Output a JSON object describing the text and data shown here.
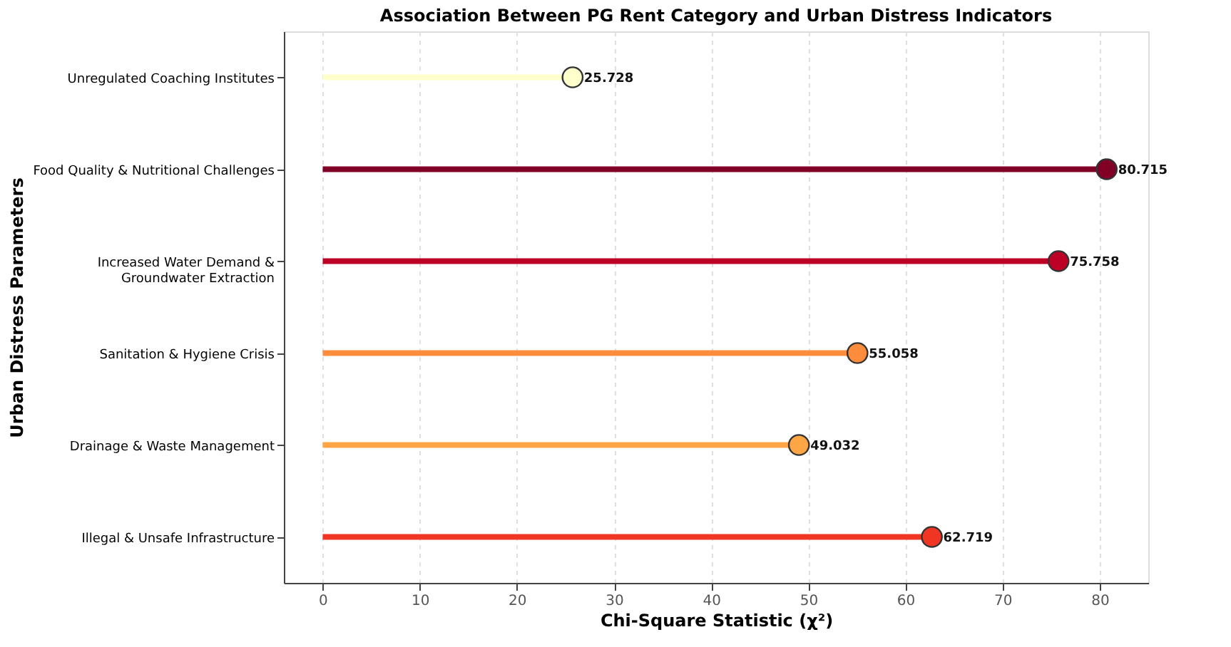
{
  "chart_data": {
    "type": "lollipop",
    "orientation": "horizontal",
    "title": "Association Between PG Rent Category and Urban Distress Indicators",
    "xlabel": "Chi-Square Statistic (χ²)",
    "ylabel": "Urban Distress Parameters",
    "categories": [
      "Unregulated Coaching Institutes",
      "Food Quality & Nutritional Challenges",
      "Increased Water Demand &\nGroundwater Extraction",
      "Sanitation & Hygiene Crisis",
      "Drainage & Waste Management",
      "Illegal & Unsafe Infrastructure"
    ],
    "values": [
      25.728,
      80.715,
      75.758,
      55.058,
      49.032,
      62.719
    ],
    "colors": [
      "#ffffcc",
      "#800026",
      "#bd0026",
      "#fd8d3c",
      "#fea546",
      "#f03523"
    ],
    "xlim": [
      -4,
      85
    ],
    "xticks": [
      0,
      10,
      20,
      30,
      40,
      50,
      60,
      70,
      80
    ],
    "grid": "x",
    "marker": "circle",
    "data_labels": true
  }
}
